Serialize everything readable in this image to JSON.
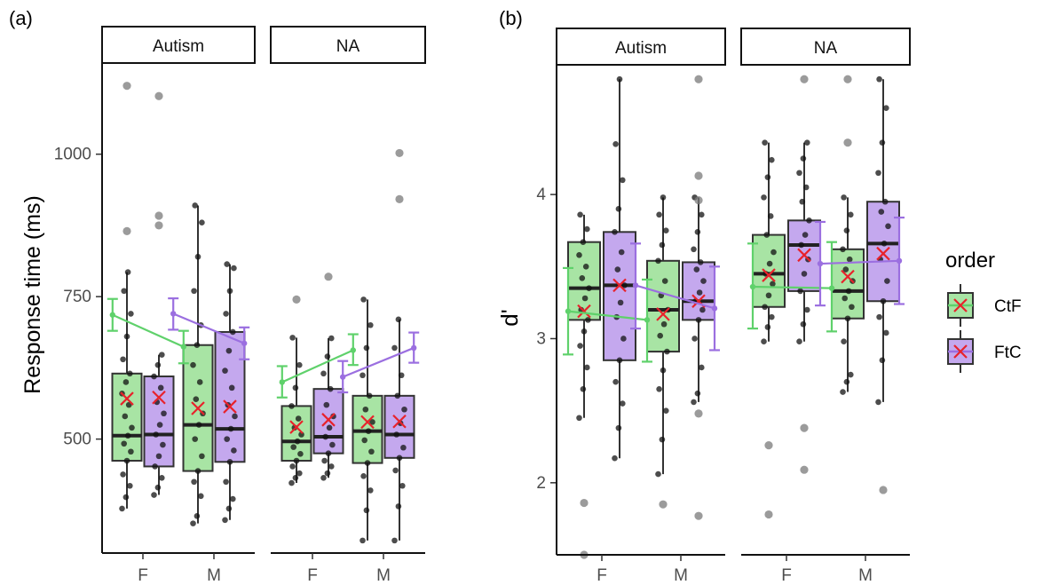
{
  "figure": {
    "legend": {
      "title": "order",
      "items": [
        {
          "label": "CtF",
          "color": "#5fd16b",
          "fill": "#a8e4a4"
        },
        {
          "label": "FtC",
          "color": "#9b6fe0",
          "fill": "#c4a8ee"
        }
      ],
      "mean_marker_color": "#e8222b"
    }
  },
  "chart_data": [
    {
      "type": "box",
      "panel_label": "(a)",
      "ylabel": "Response time (ms)",
      "xlabel": "",
      "ylim": [
        300,
        1160
      ],
      "yticks": [
        500,
        750,
        1000
      ],
      "grid": false,
      "facets": [
        "Autism",
        "NA"
      ],
      "categories": [
        "F",
        "M"
      ],
      "series": [
        {
          "name": "CtF",
          "boxes": [
            {
              "facet": "Autism",
              "x": "F",
              "q1": 462,
              "median": 506,
              "q3": 615,
              "whisker_low": 378,
              "whisker_high": 793,
              "mean": 571,
              "outliers": [
                1120,
                865
              ],
              "points": [
                378,
                398,
                418,
                438,
                462,
                478,
                492,
                506,
                520,
                540,
                560,
                580,
                600,
                615,
                640,
                680,
                720,
                760,
                793
              ]
            },
            {
              "facet": "Autism",
              "x": "M",
              "q1": 444,
              "median": 525,
              "q3": 665,
              "whisker_low": 352,
              "whisker_high": 910,
              "mean": 554,
              "outliers": [],
              "points": [
                352,
                365,
                400,
                425,
                444,
                470,
                500,
                525,
                545,
                570,
                600,
                630,
                665,
                700,
                760,
                820,
                880,
                910
              ]
            },
            {
              "facet": "NA",
              "x": "F",
              "q1": 462,
              "median": 496,
              "q3": 558,
              "whisker_low": 423,
              "whisker_high": 678,
              "mean": 521,
              "outliers": [
                745
              ],
              "points": [
                423,
                432,
                440,
                452,
                462,
                474,
                486,
                496,
                508,
                520,
                536,
                558,
                590,
                630,
                678
              ]
            },
            {
              "facet": "NA",
              "x": "M",
              "q1": 458,
              "median": 514,
              "q3": 576,
              "whisker_low": 322,
              "whisker_high": 745,
              "mean": 530,
              "outliers": [],
              "points": [
                322,
                375,
                410,
                435,
                458,
                478,
                498,
                514,
                530,
                552,
                576,
                612,
                660,
                700,
                745
              ]
            }
          ],
          "mean_ci": [
            {
              "facet": "Autism",
              "x": "F",
              "mean": 718,
              "low": 690,
              "high": 746
            },
            {
              "facet": "Autism",
              "x": "M",
              "mean": 662,
              "low": 633,
              "high": 690
            },
            {
              "facet": "NA",
              "x": "F",
              "mean": 600,
              "low": 573,
              "high": 628
            },
            {
              "facet": "NA",
              "x": "M",
              "mean": 656,
              "low": 630,
              "high": 684
            }
          ]
        },
        {
          "name": "FtC",
          "boxes": [
            {
              "facet": "Autism",
              "x": "F",
              "q1": 452,
              "median": 508,
              "q3": 610,
              "whisker_low": 402,
              "whisker_high": 648,
              "mean": 573,
              "outliers": [
                1102,
                892,
                875
              ],
              "points": [
                402,
                415,
                432,
                452,
                470,
                490,
                508,
                525,
                545,
                565,
                590,
                610,
                630,
                648
              ]
            },
            {
              "facet": "Autism",
              "x": "M",
              "q1": 460,
              "median": 518,
              "q3": 688,
              "whisker_low": 358,
              "whisker_high": 807,
              "mean": 557,
              "outliers": [],
              "points": [
                358,
                378,
                395,
                425,
                460,
                480,
                500,
                518,
                540,
                560,
                590,
                620,
                655,
                688,
                720,
                760,
                800,
                807
              ]
            },
            {
              "facet": "NA",
              "x": "F",
              "q1": 475,
              "median": 504,
              "q3": 588,
              "whisker_low": 432,
              "whisker_high": 677,
              "mean": 534,
              "outliers": [
                785
              ],
              "points": [
                432,
                440,
                452,
                462,
                475,
                490,
                504,
                520,
                540,
                560,
                588,
                615,
                645,
                677
              ]
            },
            {
              "facet": "NA",
              "x": "M",
              "q1": 467,
              "median": 508,
              "q3": 576,
              "whisker_low": 322,
              "whisker_high": 710,
              "mean": 531,
              "outliers": [
                1002,
                921
              ],
              "points": [
                322,
                382,
                418,
                445,
                467,
                485,
                508,
                528,
                552,
                576,
                612,
                660,
                710
              ]
            }
          ],
          "mean_ci": [
            {
              "facet": "Autism",
              "x": "F",
              "mean": 720,
              "low": 692,
              "high": 747
            },
            {
              "facet": "Autism",
              "x": "M",
              "mean": 668,
              "low": 640,
              "high": 696
            },
            {
              "facet": "NA",
              "x": "F",
              "mean": 609,
              "low": 582,
              "high": 637
            },
            {
              "facet": "NA",
              "x": "M",
              "mean": 660,
              "low": 634,
              "high": 687
            }
          ]
        }
      ]
    },
    {
      "type": "box",
      "panel_label": "(b)",
      "ylabel": "d'",
      "xlabel": "",
      "ylim": [
        1.5,
        4.9
      ],
      "yticks": [
        2,
        3,
        4
      ],
      "grid": false,
      "facets": [
        "Autism",
        "NA"
      ],
      "categories": [
        "F",
        "M"
      ],
      "series": [
        {
          "name": "CtF",
          "boxes": [
            {
              "facet": "Autism",
              "x": "F",
              "q1": 3.13,
              "median": 3.35,
              "q3": 3.67,
              "whisker_low": 2.45,
              "whisker_high": 3.86,
              "mean": 3.19,
              "outliers": [
                1.86,
                1.5
              ],
              "points": [
                2.45,
                2.65,
                2.8,
                2.95,
                3.05,
                3.13,
                3.2,
                3.28,
                3.35,
                3.42,
                3.5,
                3.58,
                3.67,
                3.76,
                3.86
              ]
            },
            {
              "facet": "Autism",
              "x": "M",
              "q1": 2.91,
              "median": 3.2,
              "q3": 3.54,
              "whisker_low": 2.06,
              "whisker_high": 3.98,
              "mean": 3.17,
              "outliers": [
                1.85
              ],
              "points": [
                2.06,
                2.3,
                2.5,
                2.65,
                2.78,
                2.91,
                3.02,
                3.1,
                3.2,
                3.3,
                3.4,
                3.54,
                3.65,
                3.75,
                3.86,
                3.98
              ]
            },
            {
              "facet": "NA",
              "x": "F",
              "q1": 3.22,
              "median": 3.45,
              "q3": 3.72,
              "whisker_low": 2.98,
              "whisker_high": 4.36,
              "mean": 3.44,
              "outliers": [
                2.26,
                1.78
              ],
              "points": [
                2.98,
                3.08,
                3.15,
                3.22,
                3.3,
                3.38,
                3.45,
                3.52,
                3.6,
                3.72,
                3.85,
                3.98,
                4.12,
                4.24,
                4.36
              ]
            },
            {
              "facet": "NA",
              "x": "M",
              "q1": 3.14,
              "median": 3.33,
              "q3": 3.62,
              "whisker_low": 2.63,
              "whisker_high": 3.98,
              "mean": 3.43,
              "outliers": [
                4.8,
                4.36
              ],
              "points": [
                2.63,
                2.7,
                2.75,
                2.98,
                3.14,
                3.22,
                3.28,
                3.33,
                3.4,
                3.48,
                3.55,
                3.62,
                3.75,
                3.86,
                3.98
              ]
            }
          ],
          "mean_ci": [
            {
              "facet": "Autism",
              "x": "F",
              "mean": 3.19,
              "low": 2.89,
              "high": 3.49
            },
            {
              "facet": "Autism",
              "x": "M",
              "mean": 3.13,
              "low": 2.84,
              "high": 3.41
            },
            {
              "facet": "NA",
              "x": "F",
              "mean": 3.36,
              "low": 3.07,
              "high": 3.66
            },
            {
              "facet": "NA",
              "x": "M",
              "mean": 3.35,
              "low": 3.05,
              "high": 3.67
            }
          ]
        },
        {
          "name": "FtC",
          "boxes": [
            {
              "facet": "Autism",
              "x": "F",
              "q1": 2.85,
              "median": 3.37,
              "q3": 3.74,
              "whisker_low": 2.17,
              "whisker_high": 4.8,
              "mean": 3.37,
              "outliers": [],
              "points": [
                2.17,
                2.38,
                2.55,
                2.7,
                2.85,
                3.0,
                3.15,
                3.25,
                3.37,
                3.48,
                3.6,
                3.74,
                3.9,
                4.1,
                4.35,
                4.8
              ]
            },
            {
              "facet": "Autism",
              "x": "M",
              "q1": 3.13,
              "median": 3.26,
              "q3": 3.53,
              "whisker_low": 2.56,
              "whisker_high": 3.98,
              "mean": 3.26,
              "outliers": [
                4.8,
                4.13,
                3.96,
                2.48,
                1.77
              ],
              "points": [
                2.56,
                2.62,
                2.8,
                3.0,
                3.13,
                3.2,
                3.26,
                3.32,
                3.4,
                3.48,
                3.53,
                3.62,
                3.74,
                3.86,
                3.98
              ]
            },
            {
              "facet": "NA",
              "x": "F",
              "q1": 3.33,
              "median": 3.65,
              "q3": 3.82,
              "whisker_low": 2.98,
              "whisker_high": 4.36,
              "mean": 3.58,
              "outliers": [
                4.8,
                2.38,
                2.09
              ],
              "points": [
                2.98,
                3.1,
                3.2,
                3.33,
                3.45,
                3.55,
                3.65,
                3.72,
                3.82,
                3.95,
                4.05,
                4.15,
                4.25,
                4.36
              ]
            },
            {
              "facet": "NA",
              "x": "M",
              "q1": 3.26,
              "median": 3.66,
              "q3": 3.95,
              "whisker_low": 2.56,
              "whisker_high": 4.8,
              "mean": 3.59,
              "outliers": [
                1.95
              ],
              "points": [
                2.56,
                2.85,
                3.04,
                3.15,
                3.26,
                3.4,
                3.55,
                3.66,
                3.78,
                3.88,
                3.95,
                4.15,
                4.36,
                4.6,
                4.8
              ]
            }
          ],
          "mean_ci": [
            {
              "facet": "Autism",
              "x": "F",
              "mean": 3.37,
              "low": 3.07,
              "high": 3.66
            },
            {
              "facet": "Autism",
              "x": "M",
              "mean": 3.21,
              "low": 2.92,
              "high": 3.5
            },
            {
              "facet": "NA",
              "x": "F",
              "mean": 3.52,
              "low": 3.23,
              "high": 3.81
            },
            {
              "facet": "NA",
              "x": "M",
              "mean": 3.54,
              "low": 3.24,
              "high": 3.84
            }
          ]
        }
      ]
    }
  ]
}
